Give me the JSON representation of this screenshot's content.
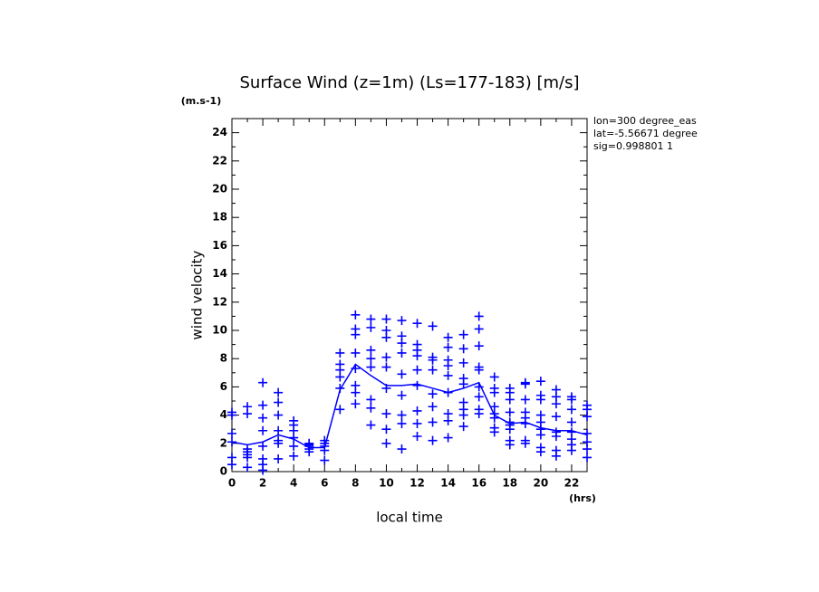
{
  "chart_data": {
    "type": "scatter",
    "title": "Surface Wind (z=1m) (Ls=177-183) [m/s]",
    "y_unit": "(m.s-1)",
    "x_unit": "(hrs)",
    "xlabel": "local time",
    "ylabel": "wind velocity",
    "annotations": [
      "lon=300 degree_eas",
      "lat=-5.56671 degree",
      "sig=0.998801 1"
    ],
    "xlim": [
      0,
      23
    ],
    "ylim": [
      0,
      25
    ],
    "xticks": [
      0,
      2,
      4,
      6,
      8,
      10,
      12,
      14,
      16,
      18,
      20,
      22
    ],
    "yticks": [
      0,
      2,
      4,
      6,
      8,
      10,
      12,
      14,
      16,
      18,
      20,
      22,
      24
    ],
    "xminorticks": [
      1,
      3,
      5,
      7,
      9,
      11,
      13,
      15,
      17,
      19,
      21,
      23
    ],
    "yminorticks": [
      1,
      3,
      5,
      7,
      9,
      11,
      13,
      15,
      17,
      19,
      21,
      23,
      25
    ],
    "series": [
      {
        "type": "scatter",
        "color": "#0000ff",
        "x": [
          0,
          0,
          0,
          0,
          0,
          0,
          1,
          1,
          1,
          1,
          1,
          1,
          1,
          2,
          2,
          2,
          2,
          2,
          2,
          2,
          2,
          3,
          3,
          3,
          3,
          3,
          3,
          3,
          4,
          4,
          4,
          4,
          4,
          4,
          5,
          5,
          5,
          5,
          5,
          6,
          6,
          6,
          6,
          6,
          7,
          7,
          7,
          7,
          7,
          7,
          8,
          8,
          8,
          8,
          8,
          8,
          8,
          8,
          9,
          9,
          9,
          9,
          9,
          9,
          9,
          9,
          10,
          10,
          10,
          10,
          10,
          10,
          10,
          10,
          10,
          11,
          11,
          11,
          11,
          11,
          11,
          11,
          11,
          11,
          12,
          12,
          12,
          12,
          12,
          12,
          12,
          12,
          12,
          13,
          13,
          13,
          13,
          13,
          13,
          13,
          13,
          14,
          14,
          14,
          14,
          14,
          14,
          14,
          14,
          14,
          15,
          15,
          15,
          15,
          15,
          15,
          15,
          15,
          15,
          16,
          16,
          16,
          16,
          16,
          16,
          16,
          16,
          16,
          17,
          17,
          17,
          17,
          17,
          17,
          17,
          17,
          18,
          18,
          18,
          18,
          18,
          18,
          18,
          18,
          18,
          19,
          19,
          19,
          19,
          19,
          19,
          19,
          19,
          20,
          20,
          20,
          20,
          20,
          20,
          20,
          20,
          20,
          21,
          21,
          21,
          21,
          21,
          21,
          21,
          21,
          22,
          22,
          22,
          22,
          22,
          22,
          22,
          22,
          23,
          23,
          23,
          23,
          23,
          23,
          23
        ],
        "values": [
          4.2,
          4.0,
          2.7,
          2.1,
          1.0,
          0.5,
          4.6,
          4.1,
          1.6,
          1.4,
          1.2,
          1.0,
          0.3,
          6.3,
          4.7,
          3.8,
          2.9,
          1.8,
          0.9,
          0.5,
          0.1,
          5.6,
          4.9,
          4.0,
          2.9,
          2.2,
          2.0,
          0.9,
          3.6,
          3.3,
          2.9,
          2.4,
          1.8,
          1.1,
          2.0,
          1.9,
          1.8,
          1.6,
          1.4,
          2.2,
          2.0,
          1.8,
          1.5,
          0.8,
          8.4,
          7.6,
          7.2,
          6.7,
          5.9,
          4.4,
          11.1,
          10.1,
          9.7,
          8.4,
          7.3,
          6.1,
          5.6,
          4.8,
          10.8,
          10.2,
          8.6,
          8.0,
          7.4,
          5.1,
          4.5,
          3.3,
          10.8,
          10.0,
          9.5,
          8.1,
          7.4,
          5.9,
          4.1,
          3.0,
          2.0,
          10.7,
          9.6,
          9.1,
          8.4,
          6.9,
          5.4,
          4.0,
          3.4,
          1.6,
          10.5,
          9.0,
          8.6,
          8.2,
          7.2,
          6.1,
          4.3,
          3.4,
          2.5,
          10.3,
          8.1,
          7.9,
          7.2,
          5.5,
          4.6,
          3.5,
          2.2,
          9.5,
          8.8,
          7.9,
          7.5,
          6.8,
          5.6,
          4.1,
          3.6,
          2.4,
          9.7,
          8.7,
          7.7,
          6.6,
          6.2,
          4.9,
          4.4,
          4.0,
          3.2,
          11.0,
          10.1,
          8.9,
          7.4,
          7.2,
          6.0,
          5.3,
          4.4,
          4.1,
          6.7,
          5.9,
          5.6,
          4.6,
          4.1,
          3.8,
          3.1,
          2.8,
          5.9,
          5.6,
          5.1,
          4.2,
          3.5,
          3.3,
          3.0,
          2.2,
          1.9,
          6.3,
          6.2,
          5.1,
          4.2,
          3.8,
          3.4,
          2.2,
          2.0,
          6.4,
          5.4,
          5.1,
          4.0,
          3.5,
          3.0,
          2.6,
          1.7,
          1.4,
          5.8,
          5.3,
          4.8,
          3.9,
          2.8,
          2.5,
          1.5,
          1.1,
          5.3,
          5.1,
          4.4,
          3.5,
          2.8,
          2.3,
          1.9,
          1.5,
          4.7,
          4.4,
          3.9,
          2.7,
          2.1,
          1.6,
          1.0
        ]
      },
      {
        "type": "line",
        "color": "#0000ff",
        "x": [
          0,
          1,
          2,
          3,
          4,
          5,
          6,
          7,
          8,
          9,
          10,
          11,
          12,
          13,
          14,
          15,
          16,
          17,
          18,
          19,
          20,
          21,
          22,
          23
        ],
        "values": [
          2.1,
          1.9,
          2.1,
          2.6,
          2.3,
          1.7,
          1.7,
          5.8,
          7.6,
          6.8,
          6.1,
          6.1,
          6.2,
          5.9,
          5.6,
          5.9,
          6.3,
          4.0,
          3.4,
          3.5,
          3.1,
          2.9,
          2.9,
          2.6
        ]
      }
    ]
  }
}
